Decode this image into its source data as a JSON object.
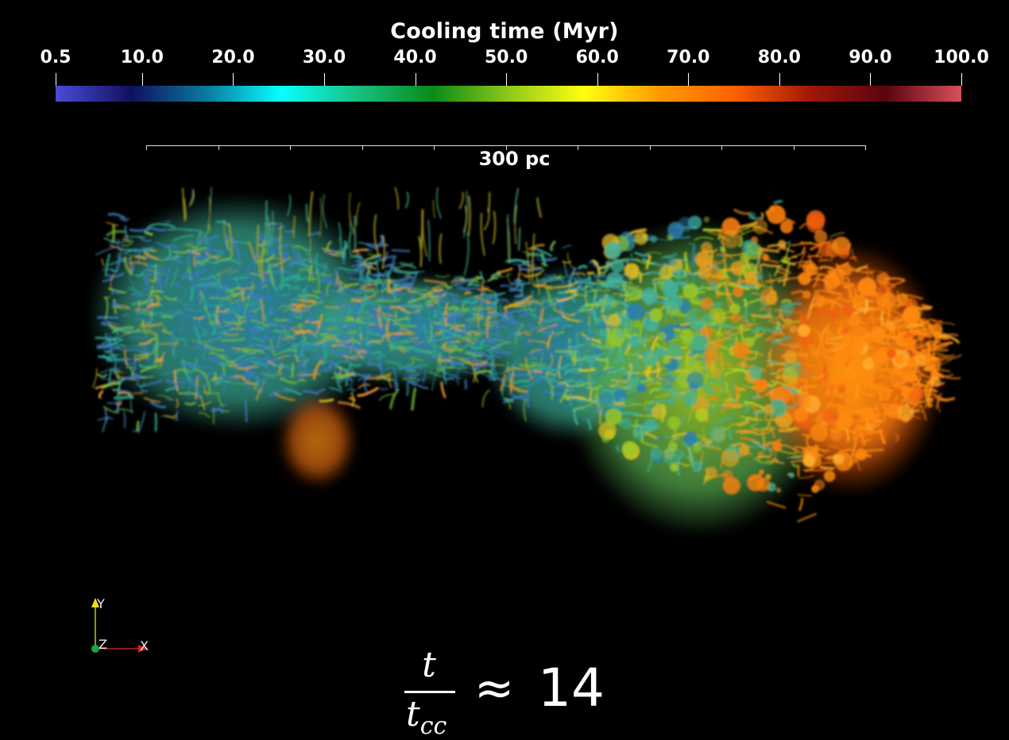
{
  "colorbar": {
    "title": "Cooling time (Myr)",
    "ticks": [
      "0.5",
      "10.0",
      "20.0",
      "30.0",
      "40.0",
      "50.0",
      "60.0",
      "70.0",
      "80.0",
      "90.0",
      "100.0"
    ],
    "range": [
      0.5,
      100.0
    ],
    "colormap": [
      "#4b4bd8",
      "#10105e",
      "#0a7aa0",
      "#08ffff",
      "#18c080",
      "#0a8a18",
      "#8ec81a",
      "#ffff10",
      "#ff9a00",
      "#ff6000",
      "#a01806",
      "#5a0410",
      "#d8505a"
    ]
  },
  "scale_bar": {
    "label": "300 pc"
  },
  "axes": {
    "x_label": "X",
    "y_label": "Y",
    "z_label": "Z",
    "x_color": "#d42020",
    "y_color": "#e8e020",
    "z_color": "#20a040"
  },
  "formula": {
    "numerator": "t",
    "denominator_base": "t",
    "denominator_sub": "cc",
    "relation": "≈",
    "value": "14"
  }
}
